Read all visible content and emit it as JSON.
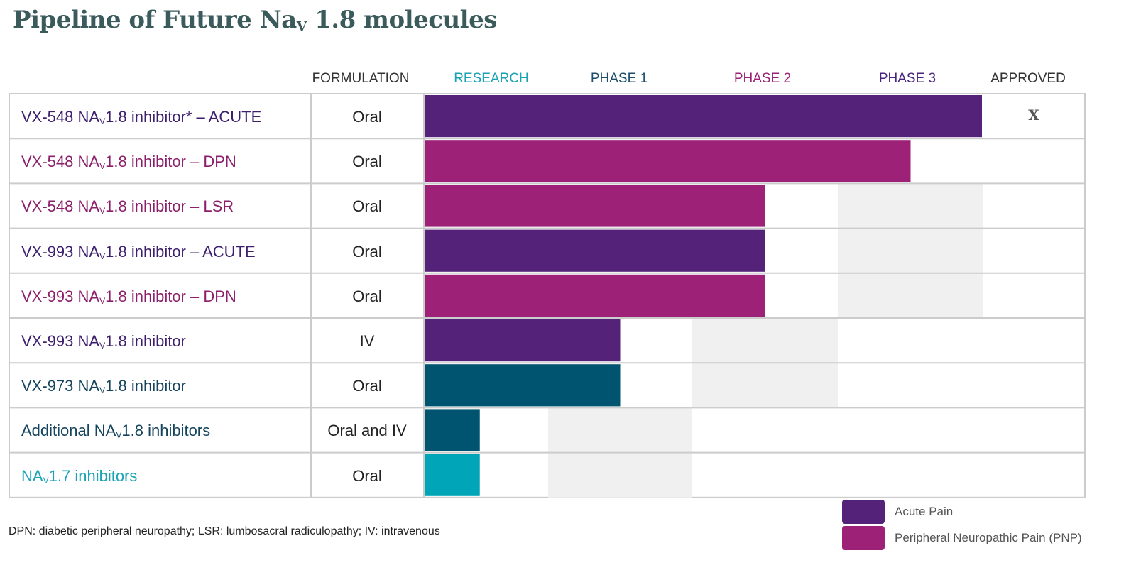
{
  "chart_data": {
    "type": "bar",
    "title_main": "Pipeline of Future Na",
    "title_sub": "V",
    "title_end": " 1.8 molecules",
    "columns": [
      {
        "key": "formulation",
        "label": "FORMULATION",
        "color": "#333333"
      },
      {
        "key": "research",
        "label": "RESEARCH",
        "color": "#1aa3b3"
      },
      {
        "key": "phase1",
        "label": "PHASE 1",
        "color": "#1d4e6b"
      },
      {
        "key": "phase2",
        "label": "PHASE 2",
        "color": "#9b2277"
      },
      {
        "key": "phase3",
        "label": "PHASE 3",
        "color": "#4a2580"
      },
      {
        "key": "approved",
        "label": "APPROVED",
        "color": "#333333"
      }
    ],
    "rows": [
      {
        "label_pre": "VX-548 NA",
        "label_sub": "V",
        "label_post": "1.8 inhibitor* – ACUTE",
        "formulation": "Oral",
        "progress": 4.0,
        "color": "#542379",
        "text_color": "#3d1f6e",
        "approved_mark": "X"
      },
      {
        "label_pre": "VX-548 NA",
        "label_sub": "V",
        "label_post": "1.8 inhibitor – DPN",
        "formulation": "Oral",
        "progress": 3.5,
        "color": "#9c2177",
        "text_color": "#8c1f6b",
        "approved_mark": ""
      },
      {
        "label_pre": "VX-548 NA",
        "label_sub": "V",
        "label_post": "1.8 inhibitor – LSR",
        "formulation": "Oral",
        "progress": 2.5,
        "color": "#9c2177",
        "text_color": "#8c1f6b",
        "approved_mark": ""
      },
      {
        "label_pre": "VX-993 NA",
        "label_sub": "V",
        "label_post": "1.8 inhibitor – ACUTE",
        "formulation": "Oral",
        "progress": 2.5,
        "color": "#542379",
        "text_color": "#3d1f6e",
        "approved_mark": ""
      },
      {
        "label_pre": "VX-993 NA",
        "label_sub": "V",
        "label_post": "1.8 inhibitor – DPN",
        "formulation": "Oral",
        "progress": 2.5,
        "color": "#9c2177",
        "text_color": "#8c1f6b",
        "approved_mark": ""
      },
      {
        "label_pre": "VX-993 NA",
        "label_sub": "V",
        "label_post": "1.8 inhibitor",
        "formulation": "IV",
        "progress": 1.5,
        "color": "#542379",
        "text_color": "#3d1f6e",
        "approved_mark": ""
      },
      {
        "label_pre": "VX-973 NA",
        "label_sub": "V",
        "label_post": "1.8 inhibitor",
        "formulation": "Oral",
        "progress": 1.5,
        "color": "#015470",
        "text_color": "#15455e",
        "approved_mark": ""
      },
      {
        "label_pre": "Additional NA",
        "label_sub": "V",
        "label_post": "1.8 inhibitors",
        "formulation": "Oral and IV",
        "progress": 0.45,
        "color": "#015470",
        "text_color": "#15455e",
        "approved_mark": ""
      },
      {
        "label_pre": "NA",
        "label_sub": "V",
        "label_post": "1.7 inhibitors",
        "formulation": "Oral",
        "progress": 0.45,
        "color": "#00a6b8",
        "text_color": "#1aa3b3",
        "approved_mark": ""
      }
    ],
    "legend": [
      {
        "label": "Acute Pain",
        "color": "#542379"
      },
      {
        "label": "Peripheral Neuropathic Pain (PNP)",
        "color": "#9c2177"
      }
    ],
    "footnote": "DPN: diabetic peripheral neuropathy; LSR: lumbosacral radiculopathy; IV: intravenous",
    "background_shading_color": "#f0f0f0",
    "grid_color": "#cccccc"
  }
}
